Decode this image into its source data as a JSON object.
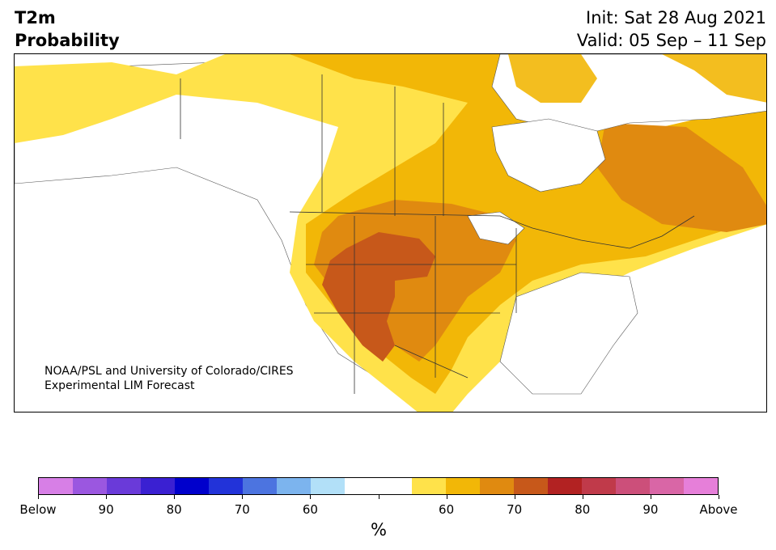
{
  "header": {
    "variable": "T2m",
    "product": "Probability",
    "init": "Init: Sat 28 Aug 2021",
    "valid": "Valid: 05 Sep – 11 Sep"
  },
  "credit": {
    "line1": "NOAA/PSL and University of Colorado/CIRES",
    "line2": "Experimental LIM Forecast"
  },
  "colorbar": {
    "units": "%",
    "colors": [
      "#d77fe6",
      "#9b57e0",
      "#6a3ad9",
      "#3a20d2",
      "#0000cc",
      "#2233d9",
      "#4c74e0",
      "#7cb4ee",
      "#b2e0f8",
      "#ffffff",
      "#ffffff",
      "#ffe24a",
      "#f2b707",
      "#e08a10",
      "#c7581a",
      "#b22222",
      "#c03a4a",
      "#cc4f7a",
      "#d966a6",
      "#e67fd9"
    ],
    "tick_labels": [
      "Below",
      "90",
      "80",
      "70",
      "60",
      "",
      "60",
      "70",
      "80",
      "90",
      "Above"
    ]
  },
  "map": {
    "colors": {
      "ocean": "#ffffff",
      "land": "#ffffff",
      "p55": "#ffe24a",
      "p60": "#f2b707",
      "p70": "#e08a10",
      "p80": "#c7581a",
      "border": "#333333"
    }
  }
}
